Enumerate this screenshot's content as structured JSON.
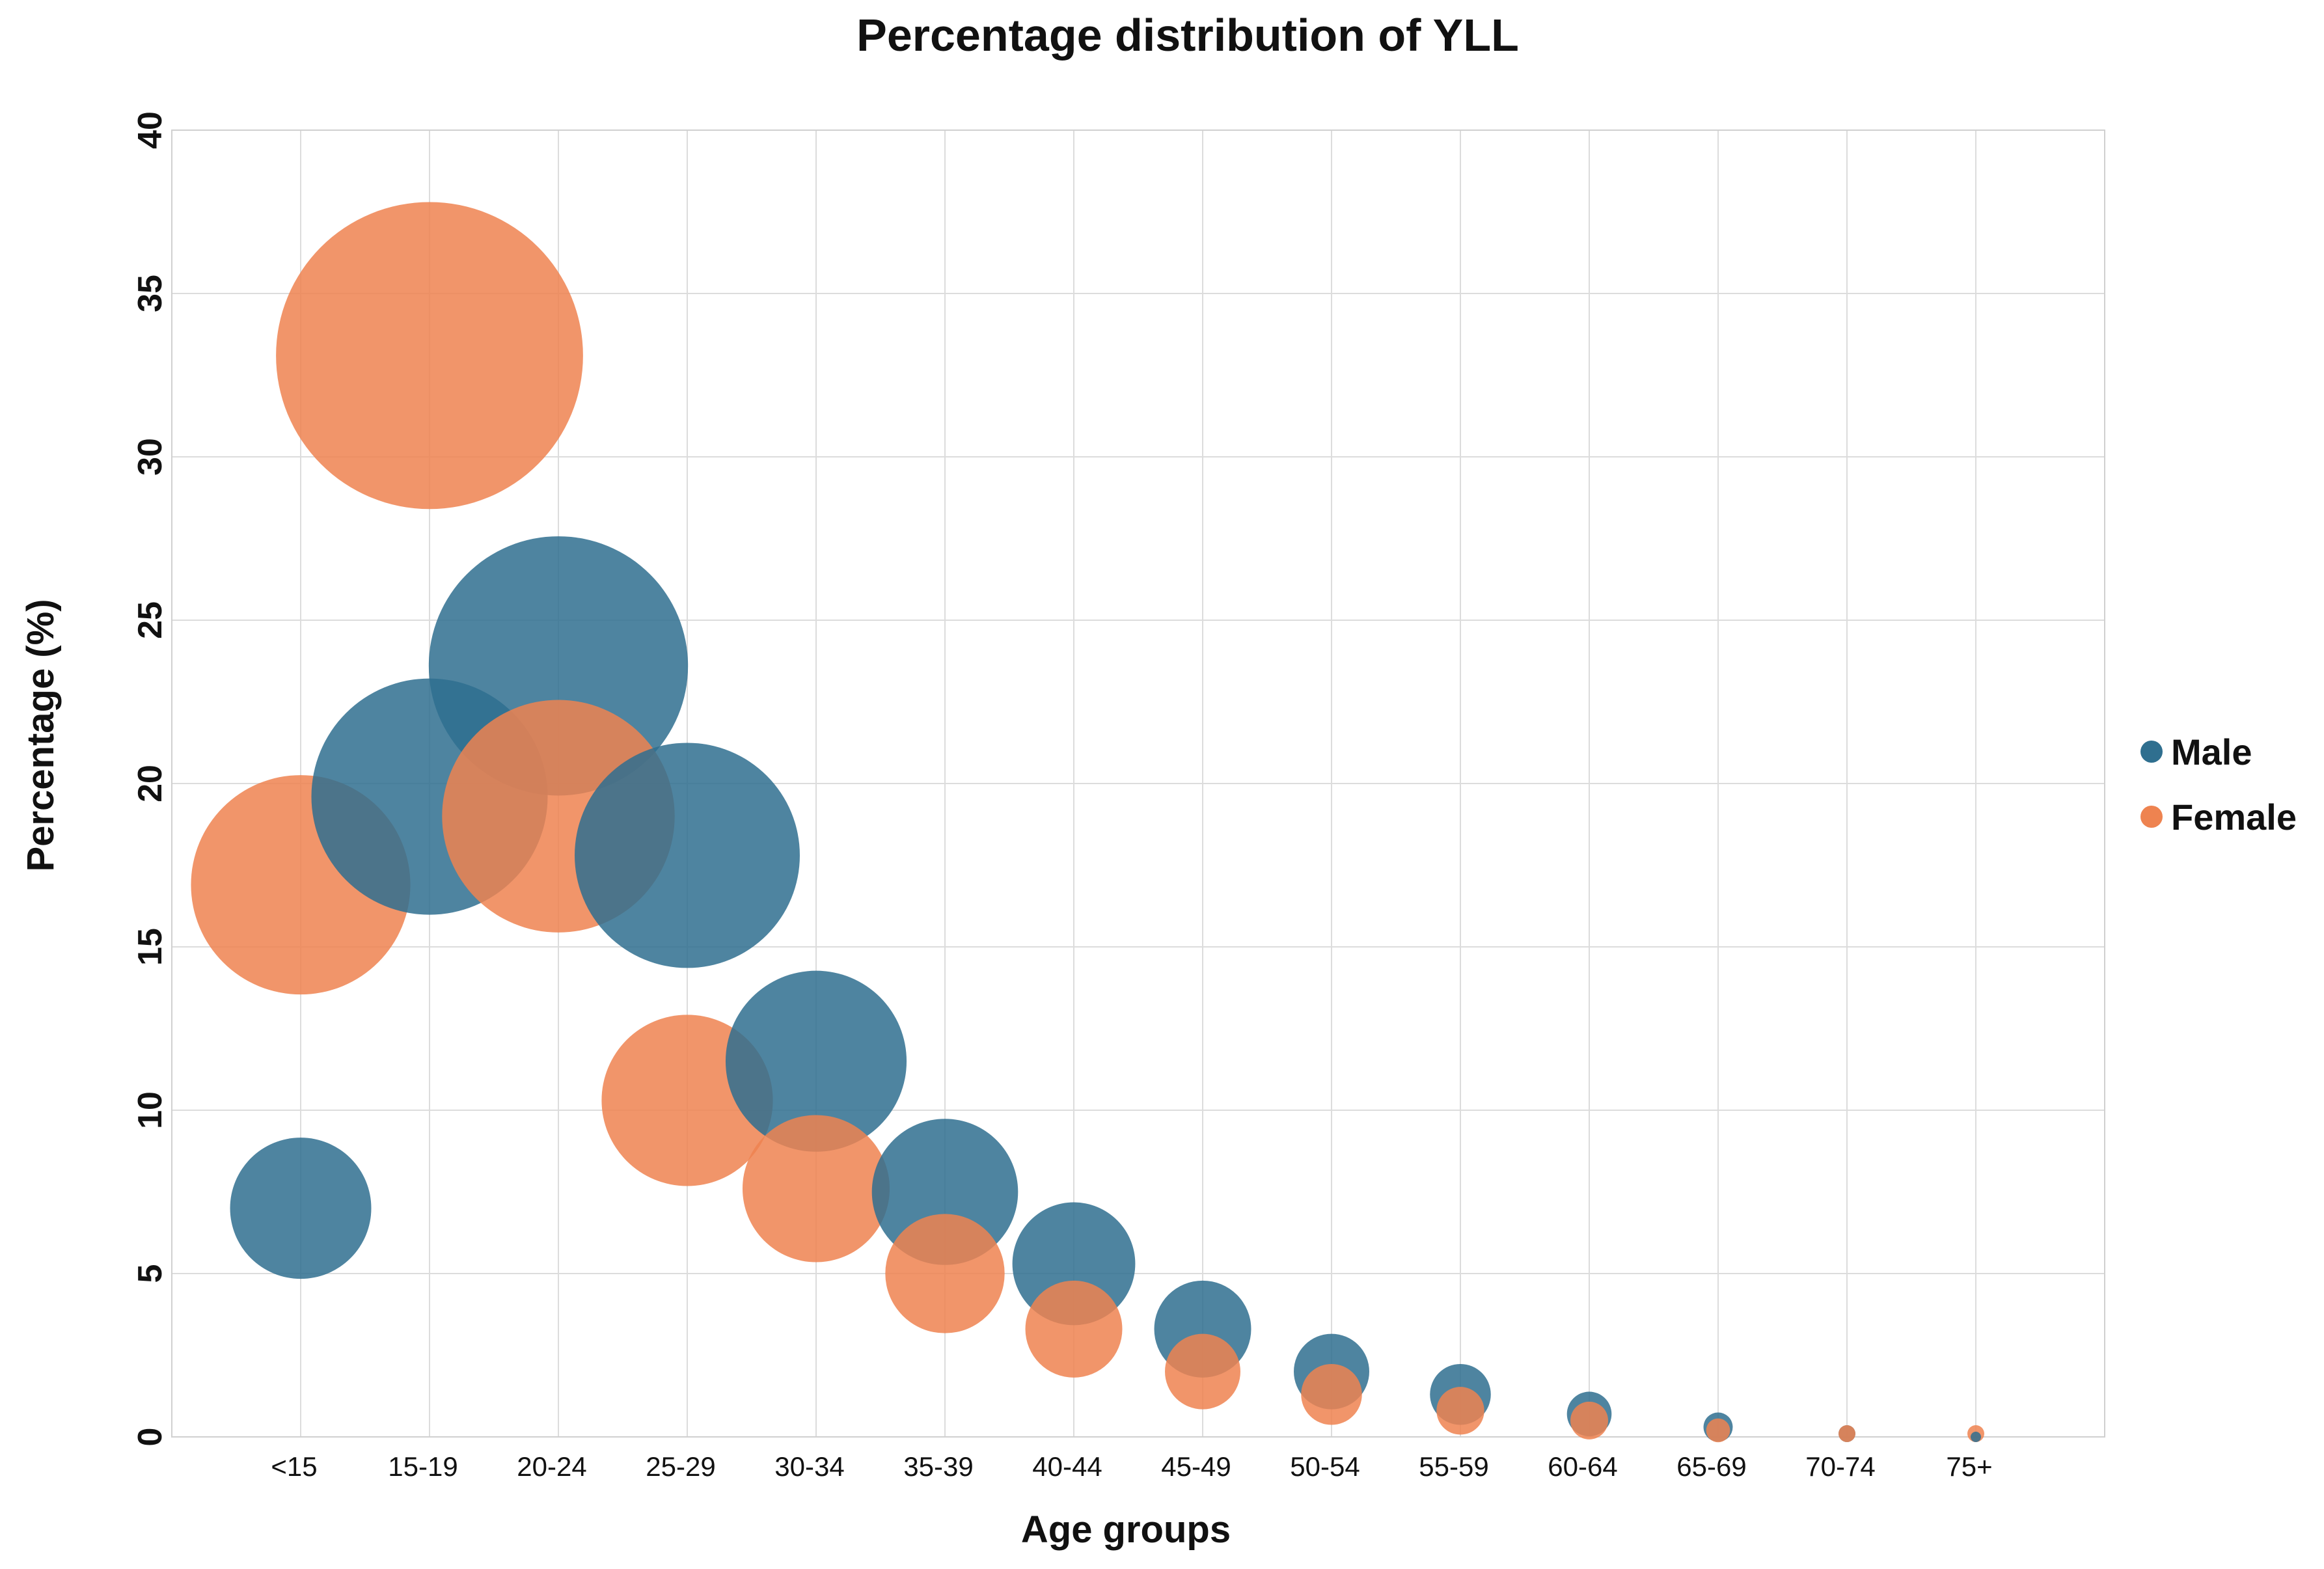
{
  "chart_data": {
    "type": "scatter",
    "title": "Percentage distribution of YLL",
    "xlabel": "Age groups",
    "ylabel": "Percentage (%)",
    "ylim": [
      0,
      40
    ],
    "yticks": [
      "0",
      "5",
      "10",
      "15",
      "20",
      "25",
      "30",
      "35",
      "40"
    ],
    "categories": [
      "<15",
      "15-19",
      "20-24",
      "25-29",
      "30-34",
      "35-39",
      "40-44",
      "45-49",
      "50-54",
      "55-59",
      "60-64",
      "65-69",
      "70-74",
      "75+"
    ],
    "grid": true,
    "legend_position": "right",
    "series": [
      {
        "name": "Male",
        "color": "#2f6f8f",
        "values": [
          7.0,
          19.6,
          23.6,
          17.8,
          11.5,
          7.5,
          5.3,
          3.3,
          2.0,
          1.3,
          0.7,
          0.3,
          0.1,
          0.0
        ]
      },
      {
        "name": "Female",
        "color": "#ee8350",
        "values": [
          16.9,
          33.1,
          19.0,
          10.3,
          7.6,
          5.0,
          3.3,
          2.0,
          1.3,
          0.8,
          0.5,
          0.2,
          0.1,
          0.1
        ]
      }
    ]
  }
}
